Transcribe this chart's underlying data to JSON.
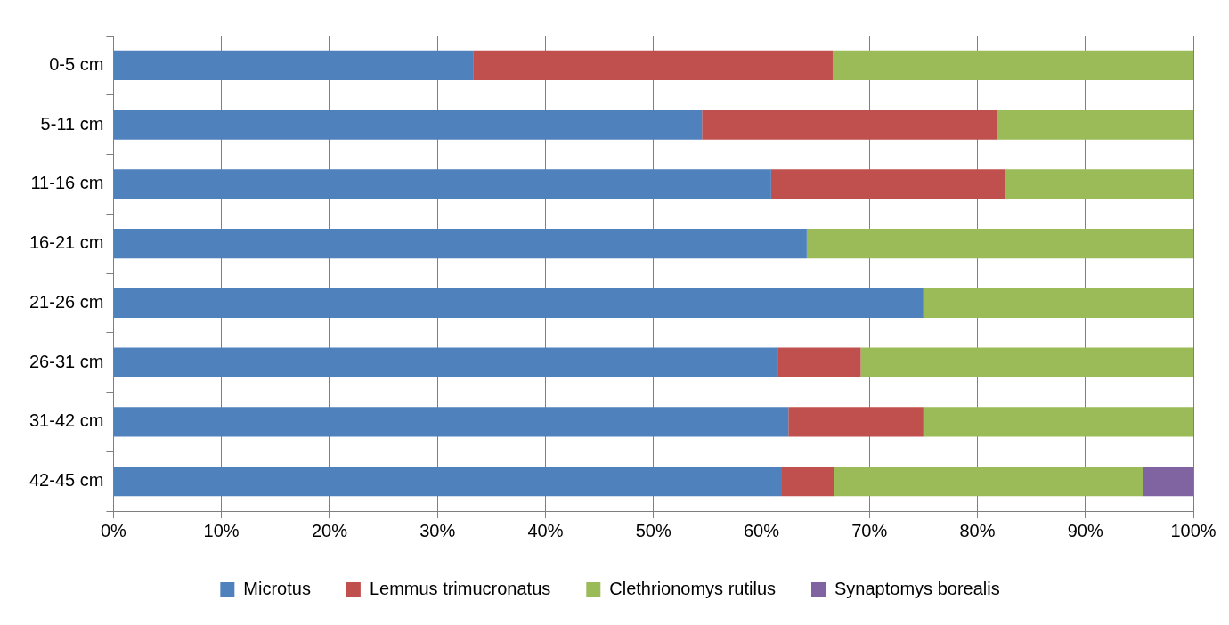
{
  "chart_data": {
    "type": "bar",
    "orientation": "horizontal",
    "stacked": true,
    "categories": [
      "0-5 cm",
      "5-11 cm",
      "11-16 cm",
      "16-21 cm",
      "21-26 cm",
      "26-31 cm",
      "31-42 cm",
      "42-45 cm"
    ],
    "series": [
      {
        "name": "Microtus",
        "color": "#4f81bd",
        "values": [
          33.3,
          54.5,
          60.9,
          64.2,
          75,
          61.5,
          62.5,
          61.9
        ]
      },
      {
        "name": "Lemmus trimucronatus",
        "color": "#c0504d",
        "values": [
          33.3,
          27.3,
          21.7,
          0,
          0,
          7.7,
          12.5,
          4.8
        ]
      },
      {
        "name": "Clethrionomys rutilus",
        "color": "#9bbb59",
        "values": [
          33.4,
          18.2,
          17.4,
          35.8,
          25,
          30.8,
          25,
          28.6
        ]
      },
      {
        "name": "Synaptomys borealis",
        "color": "#8064a2",
        "values": [
          0,
          0,
          0,
          0,
          0,
          0,
          0,
          4.7
        ]
      }
    ],
    "xlim": [
      0,
      100
    ],
    "xticks": [
      {
        "value": 0,
        "label": "0%"
      },
      {
        "value": 10,
        "label": "10%"
      },
      {
        "value": 20,
        "label": "20%"
      },
      {
        "value": 30,
        "label": "30%"
      },
      {
        "value": 40,
        "label": "40%"
      },
      {
        "value": 50,
        "label": "50%"
      },
      {
        "value": 60,
        "label": "60%"
      },
      {
        "value": 70,
        "label": "70%"
      },
      {
        "value": 80,
        "label": "80%"
      },
      {
        "value": 90,
        "label": "90%"
      },
      {
        "value": 100,
        "label": "100%"
      }
    ],
    "grid": "x",
    "legend": "bottom"
  }
}
